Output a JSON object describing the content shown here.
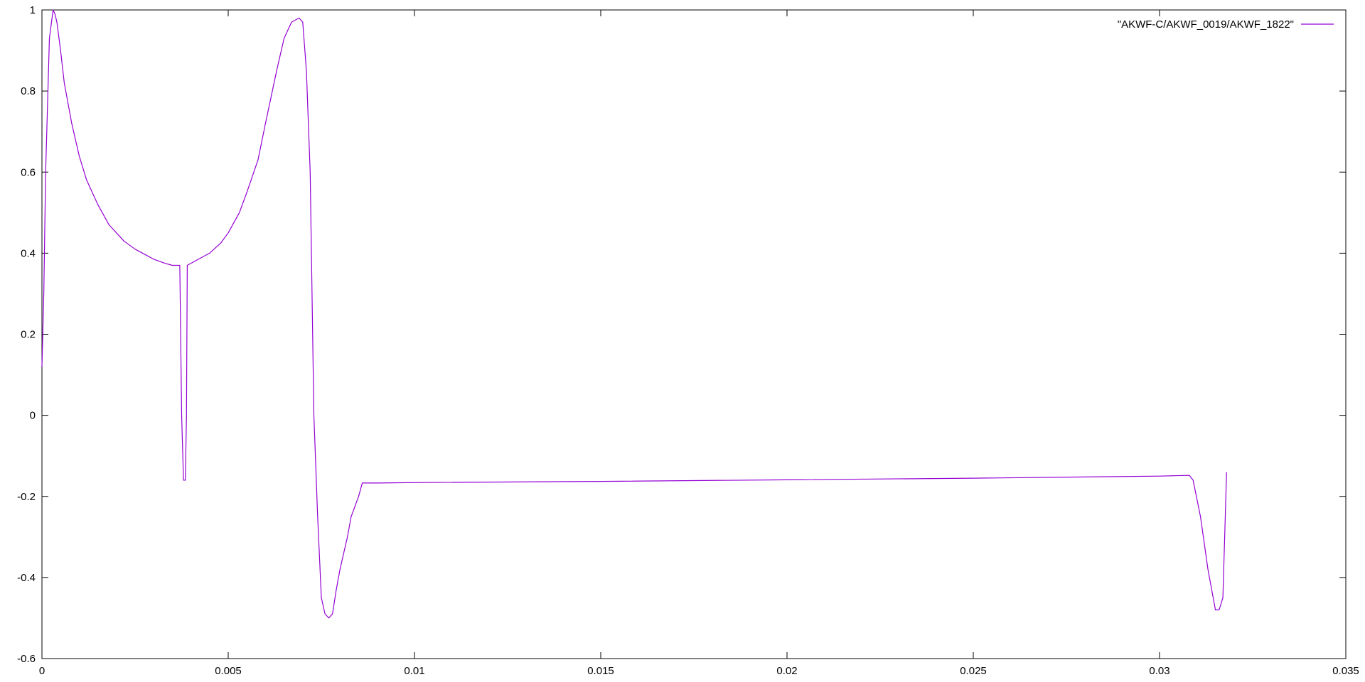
{
  "chart_data": {
    "type": "line",
    "title": "",
    "xlabel": "",
    "ylabel": "",
    "xlim": [
      0,
      0.035
    ],
    "ylim": [
      -0.6,
      1
    ],
    "x_ticks": [
      {
        "value": 0,
        "label": "0"
      },
      {
        "value": 0.005,
        "label": "0.005"
      },
      {
        "value": 0.01,
        "label": "0.01"
      },
      {
        "value": 0.015,
        "label": "0.015"
      },
      {
        "value": 0.02,
        "label": "0.02"
      },
      {
        "value": 0.025,
        "label": "0.025"
      },
      {
        "value": 0.03,
        "label": "0.03"
      },
      {
        "value": 0.035,
        "label": "0.035"
      }
    ],
    "y_ticks": [
      {
        "value": -0.6,
        "label": "-0.6"
      },
      {
        "value": -0.4,
        "label": "-0.4"
      },
      {
        "value": -0.2,
        "label": "-0.2"
      },
      {
        "value": 0,
        "label": "0"
      },
      {
        "value": 0.2,
        "label": "0.2"
      },
      {
        "value": 0.4,
        "label": "0.4"
      },
      {
        "value": 0.6,
        "label": "0.6"
      },
      {
        "value": 0.8,
        "label": "0.8"
      },
      {
        "value": 1,
        "label": "1"
      }
    ],
    "grid": false,
    "legend_position": "top-right",
    "series": [
      {
        "name": "\"AKWF-C/AKWF_0019/AKWF_1822\"",
        "color": "#9400d3",
        "x": [
          0,
          5e-05,
          0.0001,
          0.0002,
          0.0003,
          0.00035,
          0.0004,
          0.0005,
          0.0006,
          0.0008,
          0.001,
          0.0012,
          0.0015,
          0.0018,
          0.002,
          0.0022,
          0.0025,
          0.0028,
          0.003,
          0.0033,
          0.0035,
          0.0037,
          0.00375,
          0.0038,
          0.00382,
          0.00385,
          0.00388,
          0.0039,
          0.004,
          0.0042,
          0.0045,
          0.0048,
          0.005,
          0.0053,
          0.0055,
          0.0058,
          0.006,
          0.0063,
          0.0065,
          0.0067,
          0.0069,
          0.007,
          0.0071,
          0.0072,
          0.00725,
          0.0073,
          0.0074,
          0.0075,
          0.0076,
          0.0077,
          0.0078,
          0.0079,
          0.008,
          0.0082,
          0.0083,
          0.0085,
          0.0086,
          0.009,
          0.01,
          0.015,
          0.02,
          0.025,
          0.03,
          0.0308,
          0.0309,
          0.0311,
          0.0313,
          0.0315,
          0.0316,
          0.0317,
          0.0318
        ],
        "y": [
          0.12,
          0.3,
          0.6,
          0.93,
          1.0,
          0.99,
          0.97,
          0.9,
          0.82,
          0.72,
          0.64,
          0.58,
          0.52,
          0.47,
          0.45,
          0.43,
          0.41,
          0.395,
          0.385,
          0.375,
          0.37,
          0.37,
          0.0,
          -0.16,
          -0.16,
          -0.16,
          0.0,
          0.37,
          0.375,
          0.385,
          0.4,
          0.425,
          0.45,
          0.5,
          0.55,
          0.63,
          0.72,
          0.85,
          0.93,
          0.97,
          0.98,
          0.97,
          0.85,
          0.6,
          0.3,
          0.0,
          -0.25,
          -0.45,
          -0.49,
          -0.5,
          -0.49,
          -0.43,
          -0.38,
          -0.3,
          -0.25,
          -0.2,
          -0.167,
          -0.167,
          -0.166,
          -0.163,
          -0.159,
          -0.155,
          -0.15,
          -0.148,
          -0.16,
          -0.25,
          -0.38,
          -0.48,
          -0.48,
          -0.45,
          -0.14
        ]
      }
    ]
  }
}
